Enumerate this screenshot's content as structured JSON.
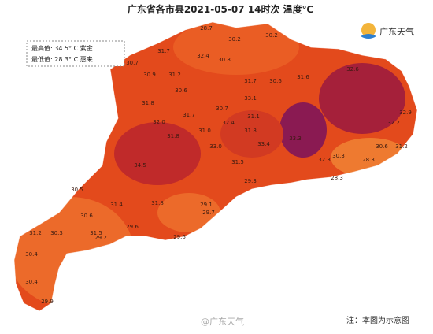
{
  "header": {
    "title": "广东省各市县2021-05-07 14时次 温度℃"
  },
  "stats": {
    "max": "最高值: 34.5° C  紫金",
    "min": "最低值: 28.3° C  惠来"
  },
  "logo": "广东天气",
  "labels": [
    "28.7",
    "30.2",
    "30.2",
    "31.7",
    "32.4",
    "30.8",
    "30.7",
    "30.9",
    "31.2",
    "31.7",
    "30.6",
    "31.6",
    "32.6",
    "30.6",
    "33.1",
    "31.8",
    "30.7",
    "31.7",
    "32.4",
    "31.8",
    "32.0",
    "31.1",
    "33.3",
    "32.9",
    "32.2",
    "31.2",
    "30.6",
    "30.3",
    "28.3",
    "32.3",
    "28.3",
    "33.4",
    "33.0",
    "31.0",
    "31.5",
    "29.3",
    "31.8",
    "34.5",
    "30.5",
    "30.6",
    "31.4",
    "31.8",
    "29.1",
    "29.7",
    "31.5",
    "30.3",
    "31.2",
    "29.2",
    "29.6",
    "29.6",
    "30.4",
    "30.4",
    "29.9"
  ],
  "watermark": "@广东天气",
  "note": "注：本图为示意图"
}
